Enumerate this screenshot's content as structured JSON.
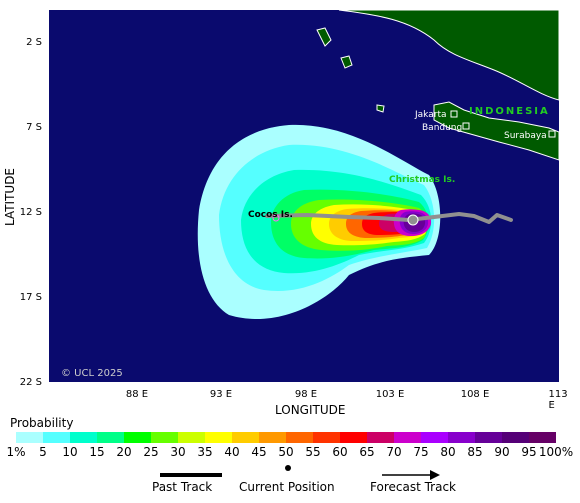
{
  "map": {
    "lat_ticks": [
      "2 S",
      "7 S",
      "12 S",
      "17 S",
      "22 S"
    ],
    "lon_ticks": [
      "88 E",
      "93 E",
      "98 E",
      "103 E",
      "108 E",
      "113 E"
    ],
    "lat_title": "LATITUDE",
    "lon_title": "LONGITUDE",
    "copyright": "© UCL 2025",
    "places": {
      "indonesia": "INDONESIA",
      "jakarta": "Jakarta",
      "bandung": "Bandung",
      "surabaya": "Surabaya",
      "christmas": "Christmas Is.",
      "cocos": "Cocos Is."
    },
    "colors": {
      "ocean": "#0a0a6e",
      "land": "#005a00",
      "past_track": "#909090",
      "labels_green": "#22cc22"
    }
  },
  "legend": {
    "title": "Probability",
    "ticks": [
      "1%",
      "5",
      "10",
      "15",
      "20",
      "25",
      "30",
      "35",
      "40",
      "45",
      "50",
      "55",
      "60",
      "65",
      "70",
      "75",
      "80",
      "85",
      "90",
      "95",
      "100%"
    ],
    "colors": [
      "#aaffff",
      "#55ffff",
      "#00ffcc",
      "#00ff88",
      "#00ff00",
      "#66ff00",
      "#ccff00",
      "#ffff00",
      "#ffcc00",
      "#ff9900",
      "#ff6600",
      "#ff3300",
      "#ff0000",
      "#cc0066",
      "#cc00cc",
      "#aa00ff",
      "#8800cc",
      "#660099",
      "#550077",
      "#660066"
    ]
  },
  "key": {
    "past_track": "Past Track",
    "current_position": "Current Position",
    "forecast_track": "Forecast Track"
  }
}
